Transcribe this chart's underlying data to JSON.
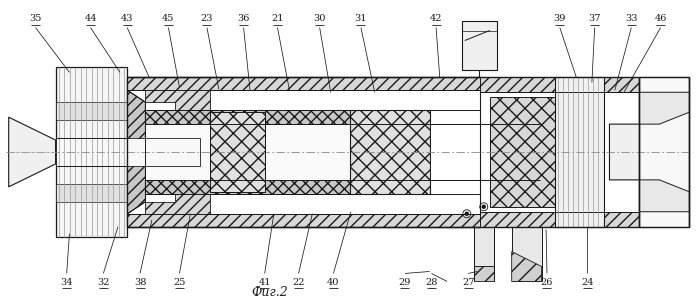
{
  "title": "Фиг.2",
  "bg_color": "#ffffff",
  "line_color": "#1a1a1a",
  "figsize": [
    6.98,
    3.05
  ],
  "dpi": 100,
  "label_fs": 7.0,
  "top_labels": {
    "35": [
      0.048,
      0.95,
      0.075,
      0.61
    ],
    "44": [
      0.105,
      0.95,
      0.145,
      0.635
    ],
    "43": [
      0.148,
      0.95,
      0.175,
      0.625
    ],
    "45": [
      0.195,
      0.95,
      0.21,
      0.61
    ],
    "23": [
      0.243,
      0.95,
      0.255,
      0.605
    ],
    "36": [
      0.283,
      0.95,
      0.295,
      0.6
    ],
    "21": [
      0.322,
      0.95,
      0.335,
      0.6
    ],
    "30": [
      0.372,
      0.95,
      0.385,
      0.59
    ],
    "31": [
      0.422,
      0.95,
      0.435,
      0.585
    ],
    "42": [
      0.508,
      0.96,
      0.505,
      0.67
    ],
    "39": [
      0.665,
      0.95,
      0.66,
      0.625
    ],
    "37": [
      0.71,
      0.95,
      0.7,
      0.625
    ],
    "33": [
      0.755,
      0.95,
      0.748,
      0.615
    ],
    "46": [
      0.8,
      0.95,
      0.79,
      0.61
    ]
  },
  "bot_labels": {
    "34": [
      0.082,
      0.06,
      0.082,
      0.39
    ],
    "32": [
      0.128,
      0.06,
      0.138,
      0.38
    ],
    "38": [
      0.172,
      0.06,
      0.182,
      0.375
    ],
    "25": [
      0.215,
      0.06,
      0.225,
      0.395
    ],
    "41": [
      0.313,
      0.06,
      0.325,
      0.41
    ],
    "22": [
      0.353,
      0.06,
      0.365,
      0.41
    ],
    "40": [
      0.392,
      0.06,
      0.405,
      0.42
    ],
    "29": [
      0.478,
      0.055,
      0.485,
      0.35
    ],
    "28": [
      0.508,
      0.055,
      0.512,
      0.34
    ],
    "27": [
      0.558,
      0.055,
      0.548,
      0.36
    ],
    "26": [
      0.65,
      0.06,
      0.652,
      0.385
    ],
    "24": [
      0.705,
      0.06,
      0.71,
      0.38
    ]
  }
}
